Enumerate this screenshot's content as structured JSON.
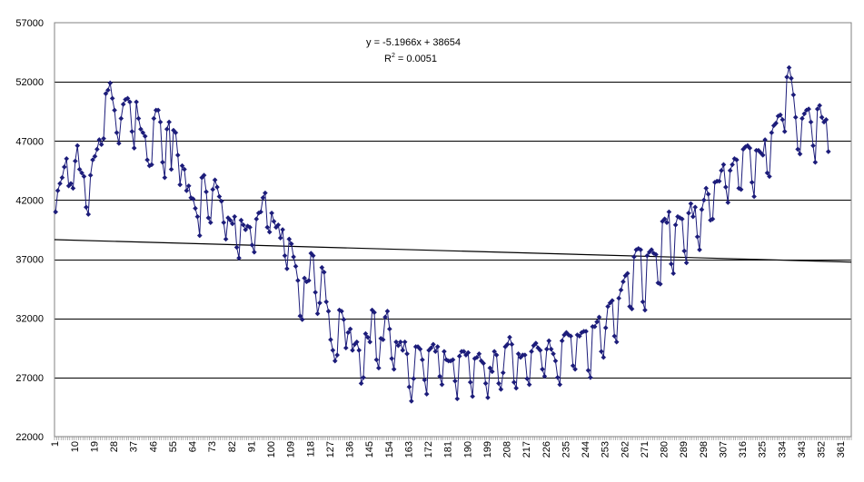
{
  "chart_data": {
    "type": "line",
    "title": "",
    "xlabel": "",
    "ylabel": "",
    "xlim": [
      1,
      365
    ],
    "ylim": [
      22000,
      57000
    ],
    "y_ticks": [
      22000,
      27000,
      32000,
      37000,
      42000,
      47000,
      52000,
      57000
    ],
    "x_ticks": [
      1,
      10,
      19,
      28,
      37,
      46,
      55,
      64,
      73,
      82,
      91,
      100,
      109,
      118,
      127,
      136,
      145,
      154,
      163,
      172,
      181,
      190,
      199,
      208,
      217,
      226,
      235,
      244,
      253,
      262,
      271,
      280,
      289,
      298,
      307,
      316,
      325,
      334,
      343,
      352,
      361
    ],
    "grid": "horizontal",
    "legend": "none",
    "trendline": {
      "equation": "y = -5.1966x + 38654",
      "r2_label": "R",
      "r2_sup": "2",
      "r2_value": " = 0.0051",
      "slope": -5.1966,
      "intercept": 38654
    },
    "series": [
      {
        "color": "#1c1c7a",
        "marker": "diamond",
        "x_start": 1,
        "values": [
          41000,
          42800,
          43400,
          43900,
          44800,
          45500,
          43200,
          43400,
          43000,
          45300,
          46600,
          44600,
          44300,
          44000,
          41400,
          40800,
          44100,
          45400,
          45700,
          46300,
          47100,
          46700,
          47200,
          51000,
          51300,
          51900,
          50600,
          49600,
          47700,
          46800,
          48900,
          50100,
          50500,
          50600,
          50300,
          47800,
          46400,
          50300,
          48900,
          48000,
          47700,
          47400,
          45400,
          44900,
          45000,
          48900,
          49600,
          49600,
          48600,
          45200,
          43900,
          48000,
          48600,
          44600,
          47900,
          47700,
          45800,
          43300,
          44900,
          44600,
          42800,
          43200,
          42200,
          42100,
          41300,
          40600,
          39000,
          43900,
          44100,
          42700,
          40500,
          40100,
          42900,
          43700,
          43100,
          42300,
          41900,
          40100,
          38700,
          40500,
          40300,
          40000,
          40600,
          38000,
          37100,
          40300,
          39900,
          39500,
          39800,
          39700,
          38200,
          37600,
          40400,
          40900,
          41000,
          42200,
          42600,
          39700,
          39300,
          40900,
          40200,
          39700,
          39900,
          38800,
          39500,
          37300,
          36200,
          38700,
          38300,
          37200,
          36400,
          35200,
          32200,
          31900,
          35400,
          35100,
          35200,
          37500,
          37300,
          34200,
          32400,
          33300,
          36300,
          35900,
          33400,
          32600,
          30200,
          29300,
          28400,
          28900,
          32700,
          32600,
          31900,
          29500,
          30800,
          31100,
          29300,
          29800,
          30000,
          29300,
          26500,
          27000,
          30700,
          30400,
          30000,
          32700,
          32500,
          28500,
          27800,
          30300,
          30200,
          32100,
          32600,
          31100,
          28600,
          27700,
          30000,
          29700,
          30000,
          29300,
          30000,
          29000,
          26200,
          25000,
          26900,
          29600,
          29600,
          29400,
          28500,
          26800,
          25600,
          29300,
          29500,
          29800,
          29200,
          29600,
          27100,
          26400,
          29200,
          28500,
          28400,
          28400,
          28500,
          26700,
          25200,
          28800,
          29200,
          29200,
          28900,
          29100,
          26600,
          25400,
          28600,
          28700,
          29000,
          28400,
          28200,
          26500,
          25300,
          27800,
          27500,
          29200,
          28900,
          26500,
          26000,
          27400,
          29600,
          29800,
          30400,
          29800,
          26600,
          26100,
          29000,
          28700,
          28900,
          28900,
          26900,
          26400,
          29200,
          29700,
          29900,
          29500,
          29300,
          27700,
          27100,
          29400,
          30100,
          29400,
          29000,
          28400,
          27000,
          26400,
          30100,
          30600,
          30800,
          30600,
          30500,
          28000,
          27700,
          30600,
          30500,
          30800,
          30900,
          30900,
          27600,
          27000,
          31300,
          31300,
          31700,
          32100,
          29200,
          28700,
          31200,
          33000,
          33300,
          33500,
          30500,
          30000,
          33700,
          34400,
          35100,
          35600,
          35800,
          33000,
          32800,
          37200,
          37800,
          37900,
          37800,
          33400,
          32700,
          37300,
          37600,
          37800,
          37500,
          37400,
          35000,
          34900,
          40200,
          40400,
          40100,
          41000,
          36600,
          35800,
          39900,
          40600,
          40500,
          40400,
          37700,
          36700,
          40900,
          41700,
          40600,
          41400,
          38900,
          37800,
          41200,
          42000,
          43000,
          42500,
          40300,
          40400,
          43500,
          43600,
          43600,
          44500,
          45000,
          43100,
          41800,
          44500,
          45000,
          45500,
          45400,
          43000,
          42900,
          46300,
          46500,
          46600,
          46400,
          43500,
          42300,
          46200,
          46200,
          46000,
          45800,
          47100,
          44300,
          44000,
          47700,
          48300,
          48500,
          49100,
          49200,
          48800,
          47800,
          52400,
          53200,
          52300,
          50900,
          49000,
          46300,
          45900,
          48900,
          49300,
          49600,
          49700,
          48600,
          46600,
          45200,
          49700,
          50000,
          49000,
          48600,
          48800,
          46100
        ]
      }
    ]
  }
}
